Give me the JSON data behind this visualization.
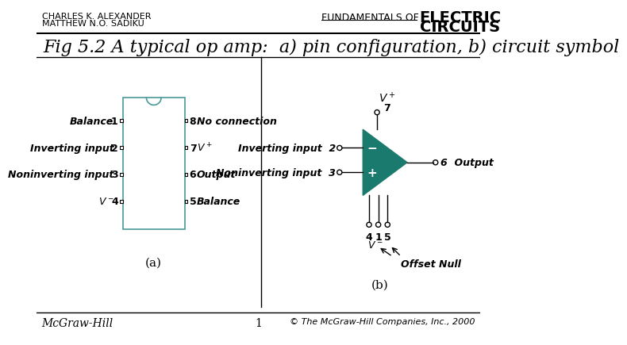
{
  "title": "Fig 5.2 A typical op amp:  a) pin configuration, b) circuit symbol",
  "header_left_line1": "CHARLES K. ALEXANDER",
  "header_left_line2": "MATTHEW N.O. SADIKU",
  "header_right_line1": "FUNDAMENTALS OF",
  "footer_left": "McGraw-Hill",
  "footer_center": "1",
  "footer_right": "© The McGraw-Hill Companies, Inc., 2000",
  "bg_color": "#ffffff",
  "teal_color": "#1a7a6e",
  "chip_border": "#4a9a9a",
  "label_a": "(a)",
  "label_b": "(b)"
}
